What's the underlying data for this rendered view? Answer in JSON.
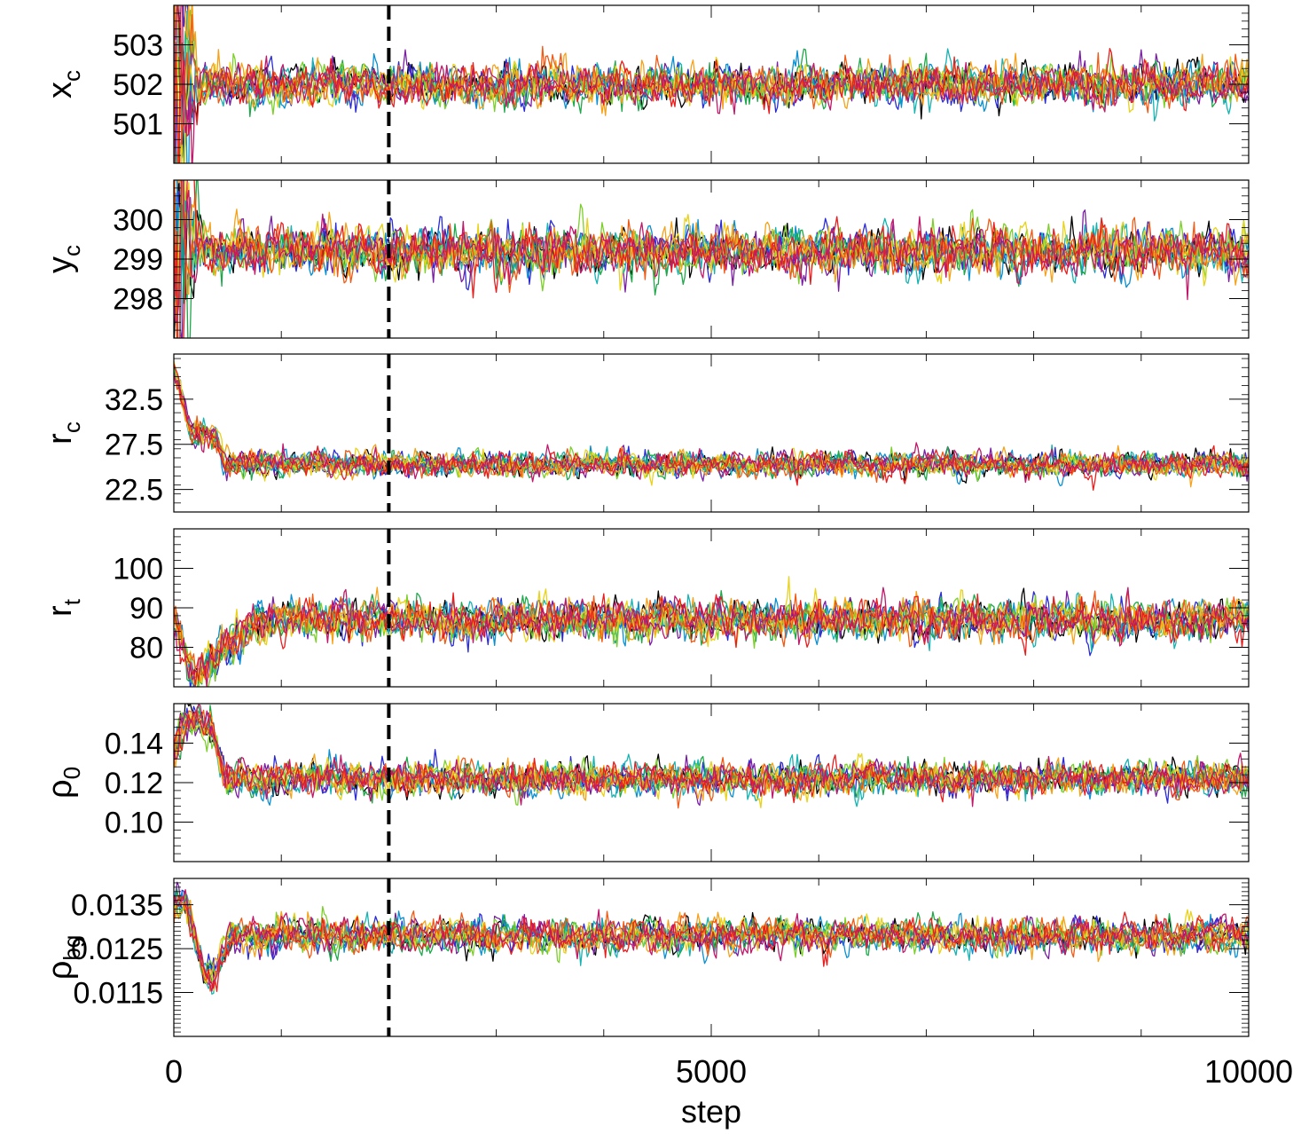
{
  "chart_data": {
    "type": "line",
    "description_series": "MCMC walker traces; many chains plotted per panel",
    "xlabel": "step",
    "xlim": [
      0,
      10000
    ],
    "x_ticks": [
      0,
      5000,
      10000
    ],
    "x_tick_labels": [
      "0",
      "5000",
      "10000"
    ],
    "x_minor_step": 1000,
    "burn_in_step": 2000,
    "n_walkers": 12,
    "walker_colors": [
      "#000000",
      "#7a1fa2",
      "#2b2bd6",
      "#0a8fd0",
      "#16b3b3",
      "#1fa84a",
      "#7ccf2a",
      "#e8d21a",
      "#f5a21a",
      "#f05a14",
      "#e81e1e",
      "#c0186a"
    ],
    "panels": [
      {
        "label_main": "x",
        "label_sub": "c",
        "ylim": [
          500,
          504
        ],
        "y_ticks": [
          501,
          502,
          503
        ],
        "y_tick_labels": [
          "501",
          "502",
          "503"
        ],
        "y_minor_step": 0.2,
        "start": 502,
        "plateau": 502,
        "final": 502.0,
        "noise": 0.3,
        "spread": 1.8
      },
      {
        "label_main": "y",
        "label_sub": "c",
        "ylim": [
          297,
          301
        ],
        "y_ticks": [
          298,
          299,
          300
        ],
        "y_tick_labels": [
          "298",
          "299",
          "300"
        ],
        "y_minor_step": 0.2,
        "start": 299,
        "plateau": 299,
        "final": 299.2,
        "noise": 0.35,
        "spread": 1.8
      },
      {
        "label_main": "r",
        "label_sub": "c",
        "ylim": [
          20,
          37.5
        ],
        "y_ticks": [
          22.5,
          27.5,
          32.5
        ],
        "y_tick_labels": [
          "22.5",
          "27.5",
          "32.5"
        ],
        "y_minor_step": 1,
        "start": 36,
        "plateau": 28.5,
        "final": 25.3,
        "noise": 0.8,
        "spread": 0.6
      },
      {
        "label_main": "r",
        "label_sub": "t",
        "ylim": [
          70,
          110
        ],
        "y_ticks": [
          80,
          90,
          100
        ],
        "y_tick_labels": [
          "80",
          "90",
          "100"
        ],
        "y_minor_step": 2,
        "start": 87,
        "plateau": 72,
        "final": 87,
        "noise": 3.0,
        "spread": 1
      },
      {
        "label_main": "ρ",
        "label_sub": "0",
        "ylim": [
          0.08,
          0.16
        ],
        "y_ticks": [
          0.1,
          0.12,
          0.14
        ],
        "y_tick_labels": [
          "0.10",
          "0.12",
          "0.14"
        ],
        "y_minor_step": 0.004,
        "start": 0.133,
        "plateau": 0.153,
        "final": 0.122,
        "noise": 0.005,
        "spread": 0.4
      },
      {
        "label_main": "ρ",
        "label_sub": "bg",
        "ylim": [
          0.0105,
          0.0141
        ],
        "y_ticks": [
          0.0115,
          0.0125,
          0.0135
        ],
        "y_tick_labels": [
          "0.0115",
          "0.0125",
          "0.0135"
        ],
        "y_minor_step": 0.0001,
        "start": 0.0134,
        "plateau": 0.0119,
        "final": 0.0128,
        "noise": 0.00022,
        "spread": 0.6
      }
    ]
  }
}
